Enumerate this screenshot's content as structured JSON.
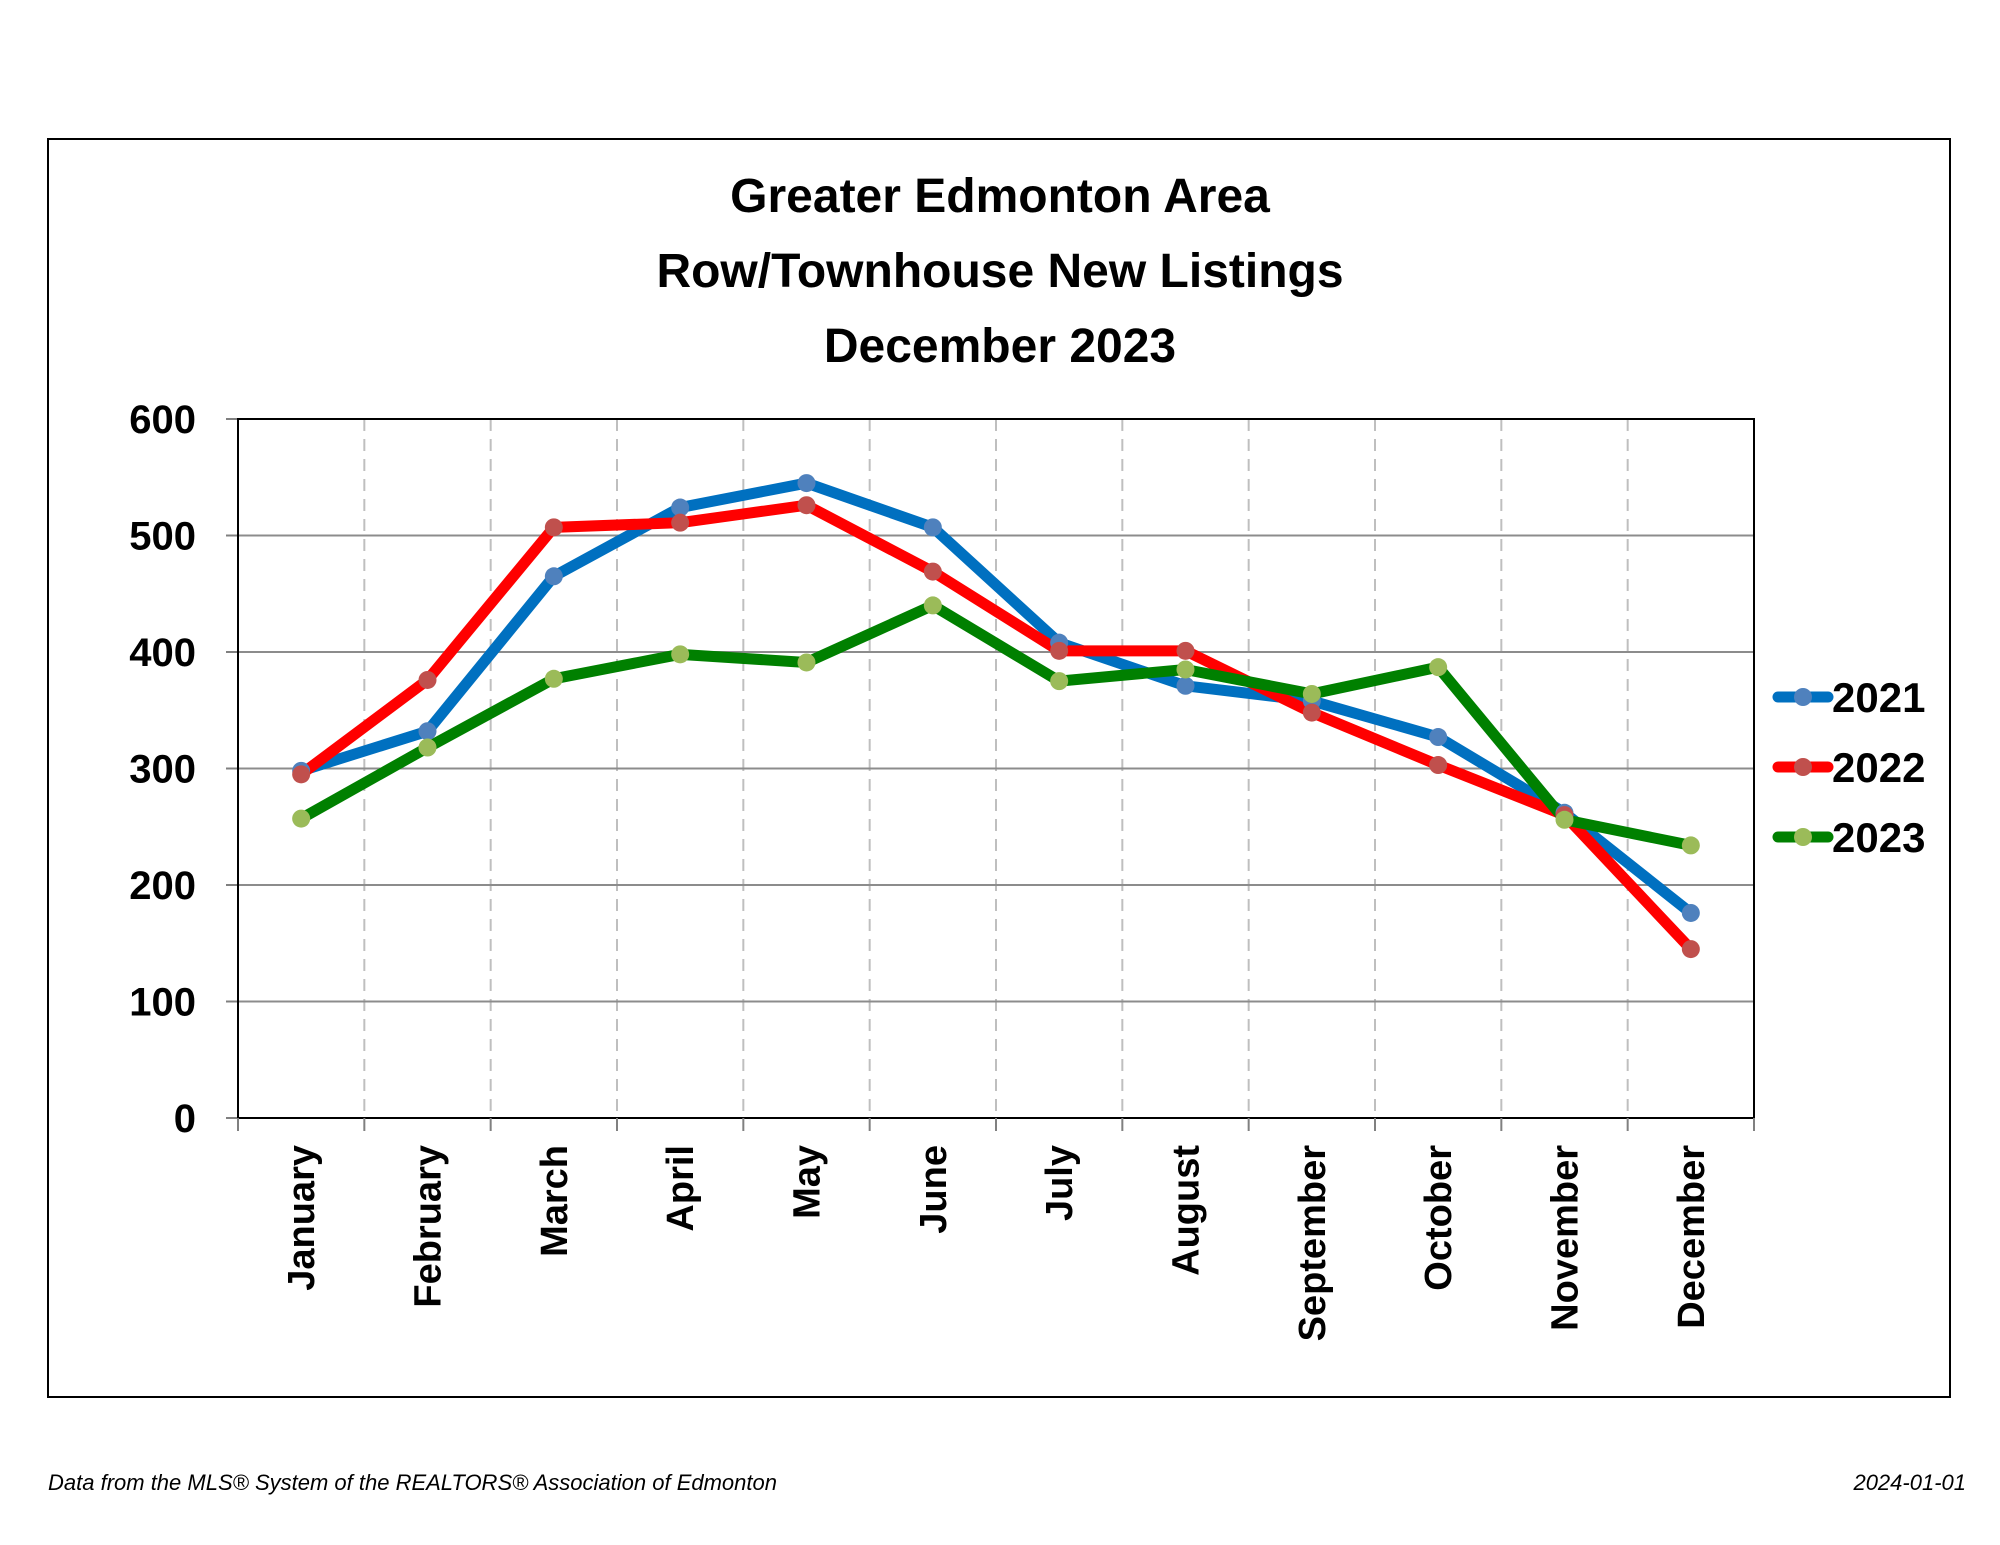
{
  "footer": {
    "source": "Data from the MLS® System of the REALTORS® Association of Edmonton",
    "date": "2024-01-01"
  },
  "chart_data": {
    "type": "line",
    "title": [
      "Greater Edmonton Area",
      "Row/Townhouse New Listings",
      "December 2023"
    ],
    "xlabel": "",
    "ylabel": "",
    "categories": [
      "January",
      "February",
      "March",
      "April",
      "May",
      "June",
      "July",
      "August",
      "September",
      "October",
      "November",
      "December"
    ],
    "yticks": [
      "0",
      "100",
      "200",
      "300",
      "400",
      "500",
      "600"
    ],
    "ylim": [
      0,
      600
    ],
    "grid": "horizontal solid, vertical dashed",
    "legend_position": "right",
    "series": [
      {
        "name": "2021",
        "color": "#0070C0",
        "marker_color": "#4F81BD",
        "values": [
          298,
          332,
          465,
          524,
          545,
          507,
          408,
          371,
          358,
          327,
          262,
          176
        ]
      },
      {
        "name": "2022",
        "color": "#FF0000",
        "marker_color": "#C0504D",
        "values": [
          295,
          376,
          507,
          511,
          526,
          469,
          401,
          401,
          348,
          303,
          260,
          145
        ]
      },
      {
        "name": "2023",
        "color": "#008000",
        "marker_color": "#9BBB59",
        "values": [
          257,
          318,
          377,
          398,
          391,
          440,
          375,
          385,
          364,
          387,
          256,
          234
        ]
      }
    ]
  }
}
